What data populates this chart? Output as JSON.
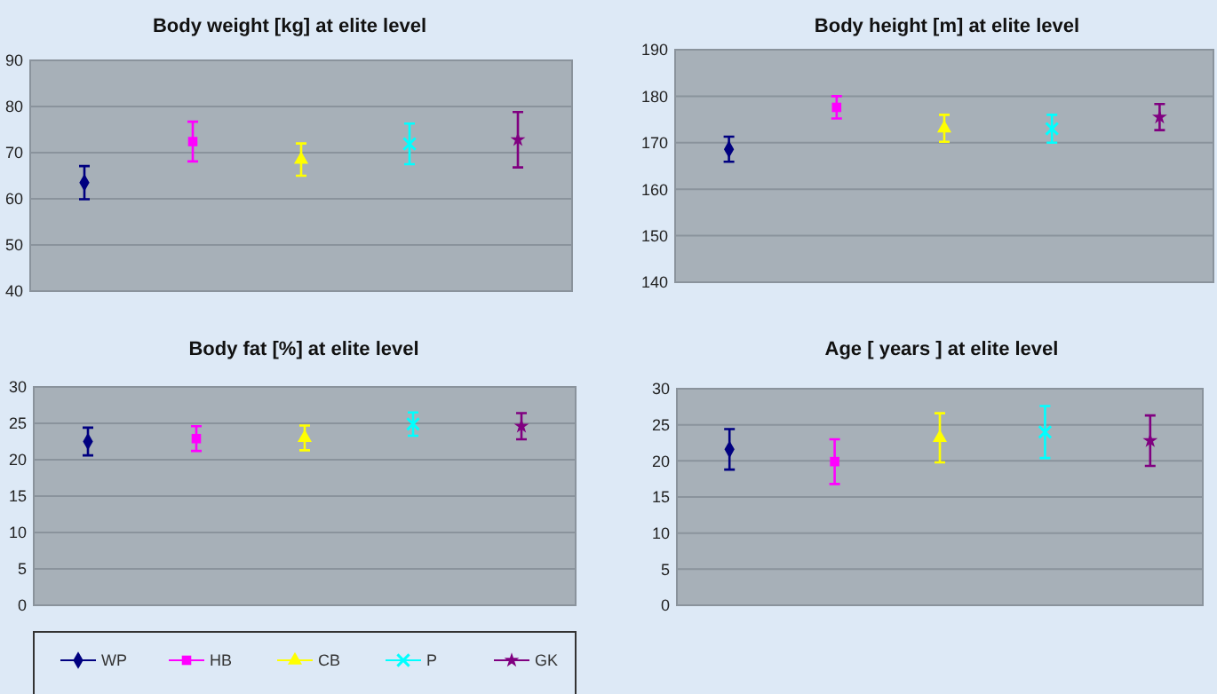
{
  "chart_data": [
    {
      "type": "line",
      "title": "Body weight [kg] at elite level",
      "categories": [
        null,
        null,
        null,
        null,
        null
      ],
      "ylim": [
        40,
        90
      ],
      "yticks": [
        40,
        50,
        60,
        70,
        80,
        90
      ],
      "grid": "y",
      "tick_labels": "y",
      "series": [
        {
          "color": "#000080",
          "marker": "diamond",
          "values": [
            63.5,
            null,
            null,
            null,
            null
          ],
          "errors": [
            3.6,
            null,
            null,
            null,
            null
          ]
        },
        {
          "color": "#ff00ff",
          "marker": "square",
          "values": [
            null,
            72.4,
            null,
            null,
            null
          ],
          "errors": [
            null,
            4.3,
            null,
            null,
            null
          ]
        },
        {
          "color": "#ffff00",
          "marker": "triangle",
          "values": [
            null,
            null,
            68.5,
            null,
            null
          ],
          "errors": [
            null,
            null,
            3.5,
            null,
            null
          ]
        },
        {
          "color": "#00ffff",
          "marker": "cross",
          "values": [
            null,
            null,
            null,
            71.9,
            null
          ],
          "errors": [
            null,
            null,
            null,
            4.4,
            null
          ]
        },
        {
          "color": "#800080",
          "marker": "star",
          "values": [
            null,
            null,
            null,
            null,
            72.8
          ],
          "errors": [
            null,
            null,
            null,
            null,
            6
          ]
        }
      ]
    },
    {
      "type": "line",
      "title": "Body height [m] at elite level",
      "categories": [
        null,
        null,
        null,
        null,
        null
      ],
      "ylim": [
        140,
        190
      ],
      "yticks": [
        140,
        150,
        160,
        170,
        180,
        190
      ],
      "grid": "y",
      "tick_labels": "y",
      "series": [
        {
          "color": "#000080",
          "marker": "diamond",
          "values": [
            168.6,
            null,
            null,
            null,
            null
          ],
          "errors": [
            2.7,
            null,
            null,
            null,
            null
          ]
        },
        {
          "color": "#ff00ff",
          "marker": "square",
          "values": [
            null,
            177.6,
            null,
            null,
            null
          ],
          "errors": [
            null,
            2.4,
            null,
            null,
            null
          ]
        },
        {
          "color": "#ffff00",
          "marker": "triangle",
          "values": [
            null,
            null,
            173.1,
            null,
            null
          ],
          "errors": [
            null,
            null,
            2.9,
            null,
            null
          ]
        },
        {
          "color": "#00ffff",
          "marker": "cross",
          "values": [
            null,
            null,
            null,
            173,
            null
          ],
          "errors": [
            null,
            null,
            null,
            3,
            null
          ]
        },
        {
          "color": "#800080",
          "marker": "star",
          "values": [
            null,
            null,
            null,
            null,
            175.5
          ],
          "errors": [
            null,
            null,
            null,
            null,
            2.8
          ]
        }
      ]
    },
    {
      "type": "line",
      "title": "Body fat [%] at elite level",
      "categories": [
        null,
        null,
        null,
        null,
        null
      ],
      "ylim": [
        0,
        30
      ],
      "yticks": [
        0,
        5,
        10,
        15,
        20,
        25,
        30
      ],
      "grid": "y",
      "tick_labels": "y",
      "legend": "bottom",
      "series": [
        {
          "name": "WP",
          "color": "#000080",
          "marker": "diamond",
          "values": [
            22.5,
            null,
            null,
            null,
            null
          ],
          "errors": [
            1.9,
            null,
            null,
            null,
            null
          ]
        },
        {
          "name": "HB",
          "color": "#ff00ff",
          "marker": "square",
          "values": [
            null,
            22.9,
            null,
            null,
            null
          ],
          "errors": [
            null,
            1.7,
            null,
            null,
            null
          ]
        },
        {
          "name": "CB",
          "color": "#ffff00",
          "marker": "triangle",
          "values": [
            null,
            null,
            23,
            null,
            null
          ],
          "errors": [
            null,
            null,
            1.7,
            null,
            null
          ]
        },
        {
          "name": "P",
          "color": "#00ffff",
          "marker": "cross",
          "values": [
            null,
            null,
            null,
            24.9,
            null
          ],
          "errors": [
            null,
            null,
            null,
            1.6,
            null
          ]
        },
        {
          "name": "GK",
          "color": "#800080",
          "marker": "star",
          "values": [
            null,
            null,
            null,
            null,
            24.6
          ],
          "errors": [
            null,
            null,
            null,
            null,
            1.8
          ]
        }
      ]
    },
    {
      "type": "line",
      "title": "Age [ years ] at elite level",
      "categories": [
        null,
        null,
        null,
        null,
        null
      ],
      "ylim": [
        0,
        30
      ],
      "yticks": [
        0,
        5,
        10,
        15,
        20,
        25,
        30
      ],
      "grid": "y",
      "tick_labels": "y",
      "series": [
        {
          "color": "#000080",
          "marker": "diamond",
          "values": [
            21.6,
            null,
            null,
            null,
            null
          ],
          "errors": [
            2.8,
            null,
            null,
            null,
            null
          ]
        },
        {
          "color": "#ff00ff",
          "marker": "square",
          "values": [
            null,
            19.9,
            null,
            null,
            null
          ],
          "errors": [
            null,
            3.1,
            null,
            null,
            null
          ]
        },
        {
          "color": "#ffff00",
          "marker": "triangle",
          "values": [
            null,
            null,
            23.2,
            null,
            null
          ],
          "errors": [
            null,
            null,
            3.4,
            null,
            null
          ]
        },
        {
          "color": "#00ffff",
          "marker": "cross",
          "values": [
            null,
            null,
            null,
            24,
            null
          ],
          "errors": [
            null,
            null,
            null,
            3.6,
            null
          ]
        },
        {
          "color": "#800080",
          "marker": "star",
          "values": [
            null,
            null,
            null,
            null,
            22.8
          ],
          "errors": [
            null,
            null,
            null,
            null,
            3.5
          ]
        }
      ]
    }
  ]
}
